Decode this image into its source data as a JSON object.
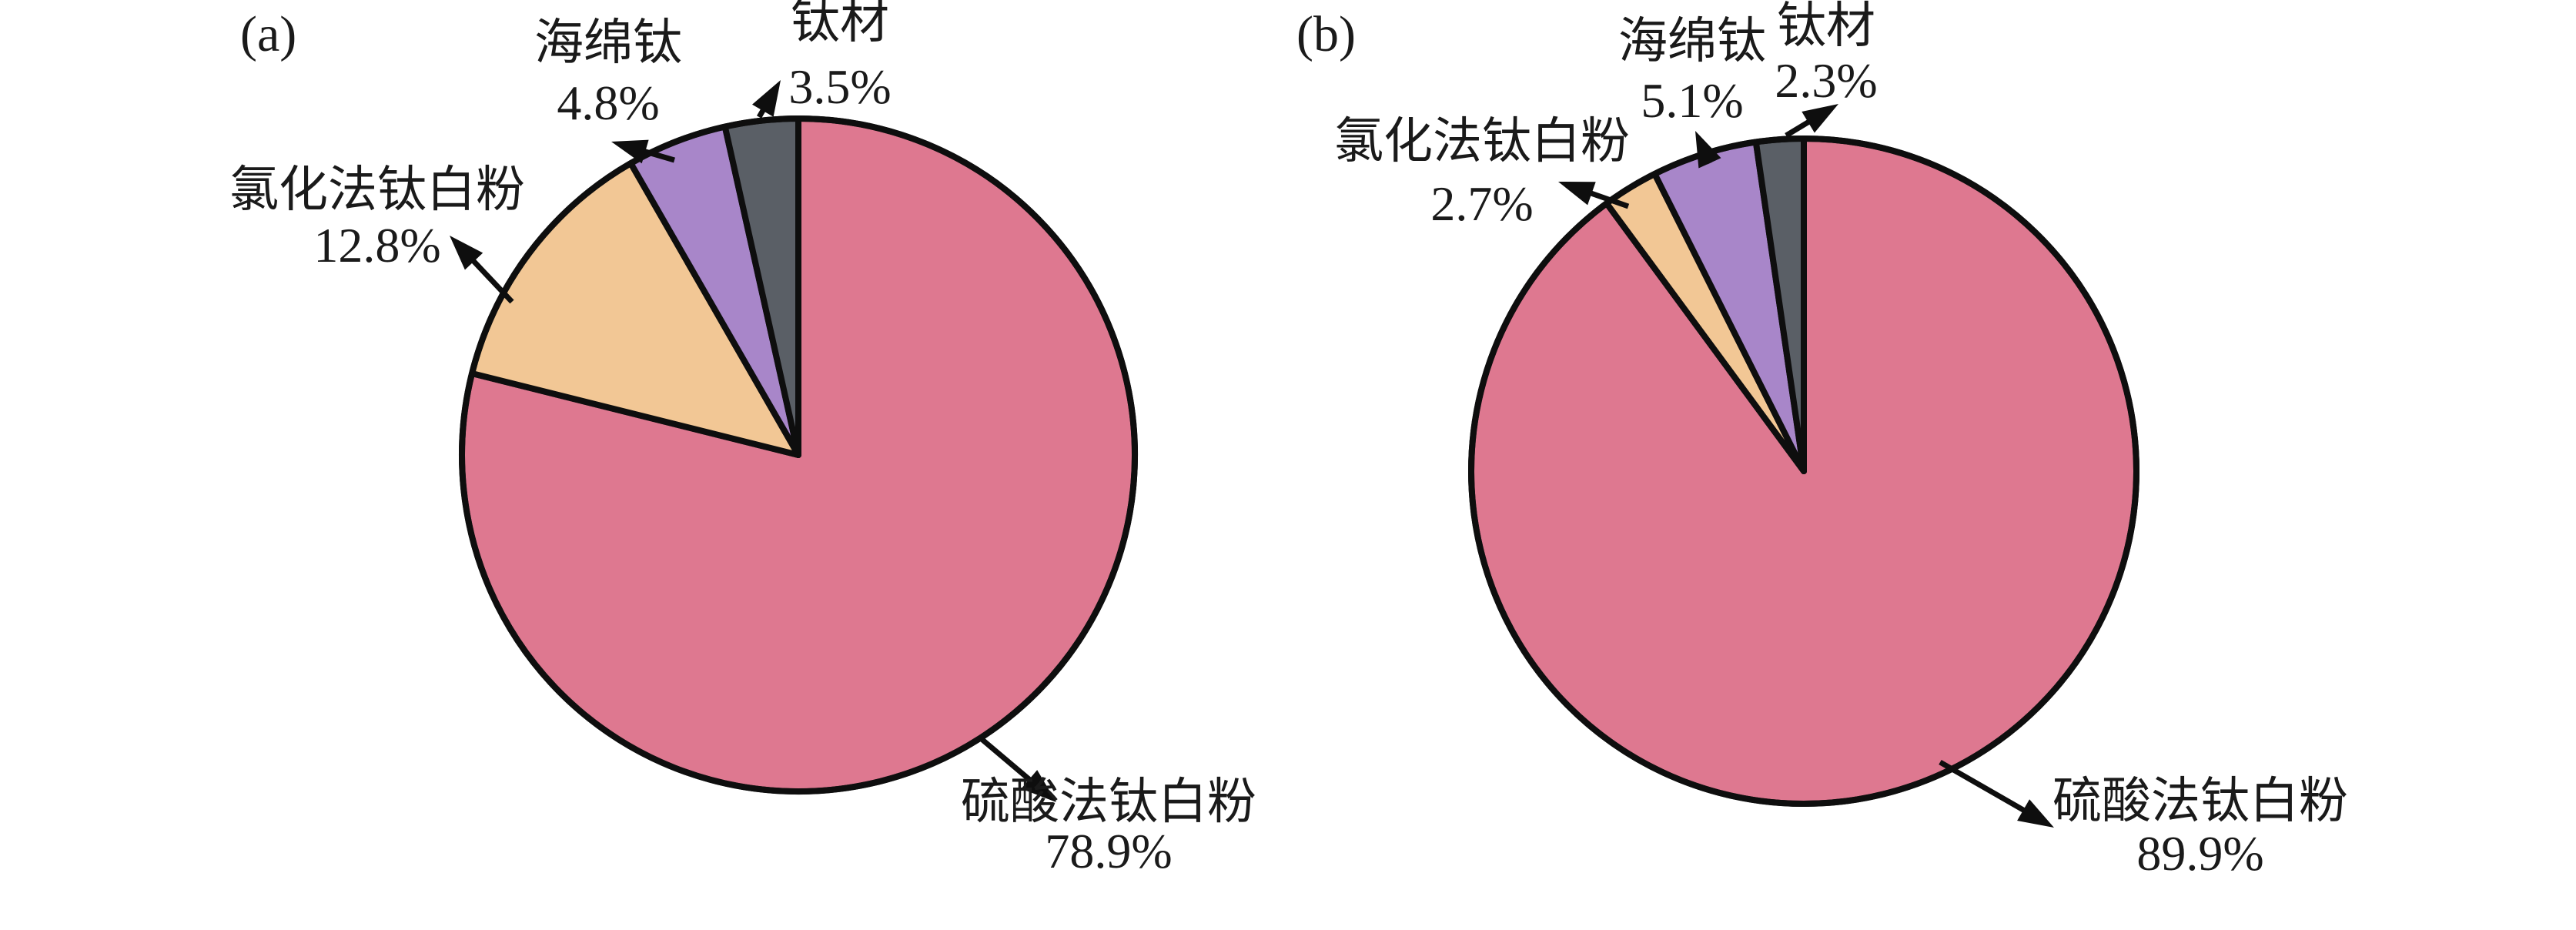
{
  "figure": {
    "background": "#ffffff",
    "text_color": "#1a1a1a",
    "outline_color": "#0e0e0e",
    "panels": [
      {
        "tag": "(a)"
      },
      {
        "tag": "(b)"
      }
    ]
  },
  "chart_data": [
    {
      "type": "pie",
      "panel": "(a)",
      "title": "",
      "start_angle_deg": 0,
      "direction": "clockwise",
      "legend": "none",
      "slices": [
        {
          "id": "sulfate-process-tio2",
          "label": "硫酸法钛白粉",
          "value": 78.9,
          "pct_label": "78.9%",
          "color": "#de7890"
        },
        {
          "id": "chloride-process-tio2",
          "label": "氯化法钛白粉",
          "value": 12.8,
          "pct_label": "12.8%",
          "color": "#f2c795"
        },
        {
          "id": "titanium-sponge",
          "label": "海绵钛",
          "value": 4.8,
          "pct_label": "4.8%",
          "color": "#a886c9"
        },
        {
          "id": "titanium-material",
          "label": "钛材",
          "value": 3.5,
          "pct_label": "3.5%",
          "color": "#5a5f66"
        }
      ]
    },
    {
      "type": "pie",
      "panel": "(b)",
      "title": "",
      "start_angle_deg": 0,
      "direction": "clockwise",
      "legend": "none",
      "slices": [
        {
          "id": "sulfate-process-tio2",
          "label": "硫酸法钛白粉",
          "value": 89.9,
          "pct_label": "89.9%",
          "color": "#de7890"
        },
        {
          "id": "chloride-process-tio2",
          "label": "氯化法钛白粉",
          "value": 2.7,
          "pct_label": "2.7%",
          "color": "#f2c795"
        },
        {
          "id": "titanium-sponge",
          "label": "海绵钛",
          "value": 5.1,
          "pct_label": "5.1%",
          "color": "#a886c9"
        },
        {
          "id": "titanium-material",
          "label": "钛材",
          "value": 2.3,
          "pct_label": "2.3%",
          "color": "#5a5f66"
        }
      ]
    }
  ]
}
